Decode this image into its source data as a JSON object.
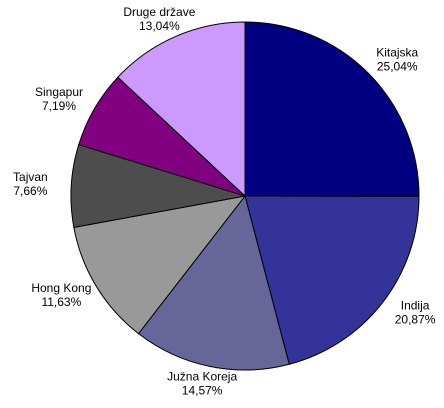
{
  "chart_data": {
    "type": "pie",
    "categories": [
      "Kitajska",
      "Indija",
      "Južna Koreja",
      "Hong Kong",
      "Tajvan",
      "Singapur",
      "Druge države"
    ],
    "values": [
      25.04,
      20.87,
      14.57,
      11.63,
      7.66,
      7.19,
      13.04
    ],
    "value_labels": [
      "25,04%",
      "20,87%",
      "14,57%",
      "11,63%",
      "7,66%",
      "7,19%",
      "13,04%"
    ],
    "colors": [
      "#000080",
      "#333399",
      "#666699",
      "#999999",
      "#4d4d4d",
      "#800080",
      "#cc99ff"
    ]
  }
}
